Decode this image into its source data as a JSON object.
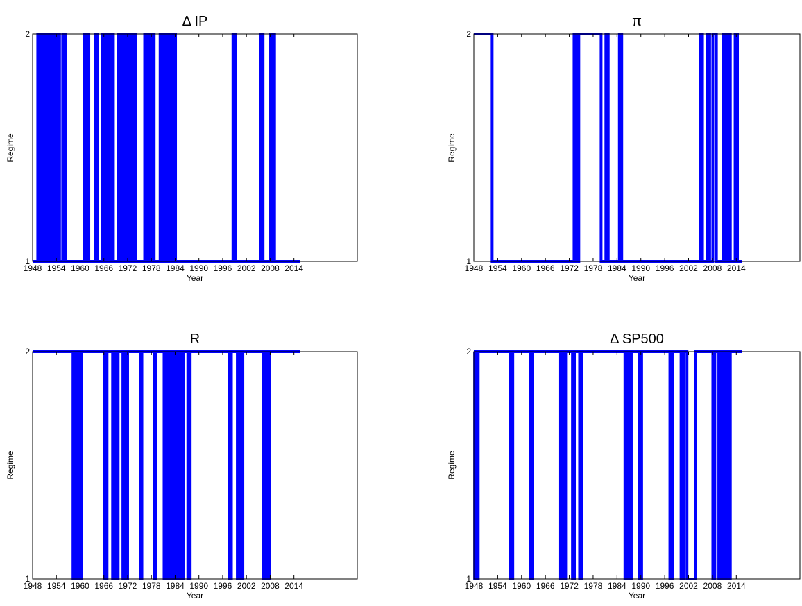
{
  "chart_data": [
    {
      "type": "line",
      "title": "Δ IP",
      "xlabel": "Year",
      "ylabel": "Regime",
      "xlim": [
        1948,
        2030
      ],
      "ylim": [
        1,
        2
      ],
      "xticks": [
        1948,
        1954,
        1960,
        1966,
        1972,
        1978,
        1984,
        1990,
        1996,
        2002,
        2008,
        2014
      ],
      "yticks": [
        1,
        2
      ],
      "grid": false,
      "series_color": "#0000ff",
      "series": [
        {
          "start_year": 1948,
          "end_year": 2015.5,
          "initial_regime": 1,
          "switch_years": [
            1949.3,
            1949.8,
            1950.2,
            1950.5,
            1950.9,
            1951.3,
            1951.6,
            1952.0,
            1952.4,
            1952.7,
            1953.1,
            1953.5,
            1954.3,
            1954.8,
            1955.6,
            1956.3,
            1961.0,
            1961.4,
            1961.8,
            1962.2,
            1963.8,
            1964.4,
            1965.6,
            1966.1,
            1966.5,
            1966.9,
            1967.3,
            1967.7,
            1968.0,
            1968.4,
            1969.6,
            1969.9,
            1970.2,
            1970.5,
            1970.8,
            1971.1,
            1971.4,
            1971.7,
            1972.0,
            1972.3,
            1972.6,
            1972.9,
            1973.2,
            1973.5,
            1973.8,
            1974.1,
            1976.3,
            1976.6,
            1977.0,
            1977.3,
            1977.6,
            1978.0,
            1978.3,
            1978.7,
            1980.2,
            1980.5,
            1980.8,
            1981.1,
            1981.4,
            1981.7,
            1982.0,
            1982.3,
            1982.6,
            1982.9,
            1983.2,
            1983.5,
            1983.8,
            1984.1,
            1998.6,
            1999.2,
            2005.6,
            2006.2,
            2008.1,
            2008.4,
            2008.7,
            2009.1
          ]
        }
      ]
    },
    {
      "type": "line",
      "title": "π",
      "xlabel": "Year",
      "ylabel": "Regime",
      "xlim": [
        1948,
        2030
      ],
      "ylim": [
        1,
        2
      ],
      "xticks": [
        1948,
        1954,
        1960,
        1966,
        1972,
        1978,
        1984,
        1990,
        1996,
        2002,
        2008,
        2014
      ],
      "yticks": [
        1,
        2
      ],
      "grid": false,
      "series_color": "#0000ff",
      "series": [
        {
          "start_year": 1948,
          "end_year": 2015.5,
          "initial_regime": 2,
          "switch_years": [
            1952.6,
            1973.2,
            1973.8,
            1974.4,
            1980.0,
            1981.2,
            1981.8,
            1984.6,
            1985.2,
            2004.9,
            2005.5,
            2006.7,
            2007.3,
            2008.1,
            2009.0,
            2010.7,
            2011.3,
            2011.9,
            2012.5,
            2013.7,
            2014.3
          ]
        }
      ]
    },
    {
      "type": "line",
      "title": "R",
      "xlabel": "Year",
      "ylabel": "Regime",
      "xlim": [
        1948,
        2030
      ],
      "ylim": [
        1,
        2
      ],
      "xticks": [
        1948,
        1954,
        1960,
        1966,
        1972,
        1978,
        1984,
        1990,
        1996,
        2002,
        2008,
        2014
      ],
      "yticks": [
        1,
        2
      ],
      "grid": false,
      "series_color": "#0000ff",
      "series": [
        {
          "start_year": 1948,
          "end_year": 2015.5,
          "initial_regime": 2,
          "switch_years": [
            1958.2,
            1958.5,
            1958.8,
            1959.1,
            1959.4,
            1959.7,
            1960.0,
            1960.3,
            1966.2,
            1966.8,
            1968.2,
            1968.8,
            1969.2,
            1969.6,
            1970.8,
            1971.2,
            1971.6,
            1972.0,
            1975.2,
            1975.6,
            1978.7,
            1979.1,
            1981.2,
            1981.5,
            1981.8,
            1982.1,
            1982.4,
            1982.7,
            1983.0,
            1983.3,
            1983.6,
            1983.9,
            1984.3,
            1984.9,
            1985.5,
            1986.1,
            1987.2,
            1987.8,
            1997.6,
            1998.2,
            1999.7,
            2000.2,
            2000.6,
            2001.1,
            2006.2,
            2006.8,
            2007.3,
            2007.9
          ]
        }
      ]
    },
    {
      "type": "line",
      "title": "Δ SP500",
      "xlabel": "Year",
      "ylabel": "Regime",
      "xlim": [
        1948,
        2030
      ],
      "ylim": [
        1,
        2
      ],
      "xticks": [
        1948,
        1954,
        1960,
        1966,
        1972,
        1978,
        1984,
        1990,
        1996,
        2002,
        2008,
        2014
      ],
      "yticks": [
        1,
        2
      ],
      "grid": false,
      "series_color": "#0000ff",
      "series": [
        {
          "start_year": 1948,
          "end_year": 2015.5,
          "initial_regime": 2,
          "switch_years": [
            1948.2,
            1948.5,
            1948.8,
            1949.1,
            1957.2,
            1957.8,
            1962.2,
            1962.8,
            1969.8,
            1970.3,
            1970.6,
            1971.1,
            1972.8,
            1973.3,
            1974.6,
            1975.1,
            1986.0,
            1986.3,
            1986.6,
            1986.9,
            1987.2,
            1987.6,
            1989.6,
            1990.2,
            1997.3,
            1997.9,
            2000.1,
            2000.7,
            2001.6,
            2003.7,
            2008.1,
            2008.6,
            2009.6,
            2010.1,
            2010.6,
            2011.1,
            2011.4,
            2011.8,
            2012.1,
            2012.5
          ]
        }
      ]
    }
  ]
}
